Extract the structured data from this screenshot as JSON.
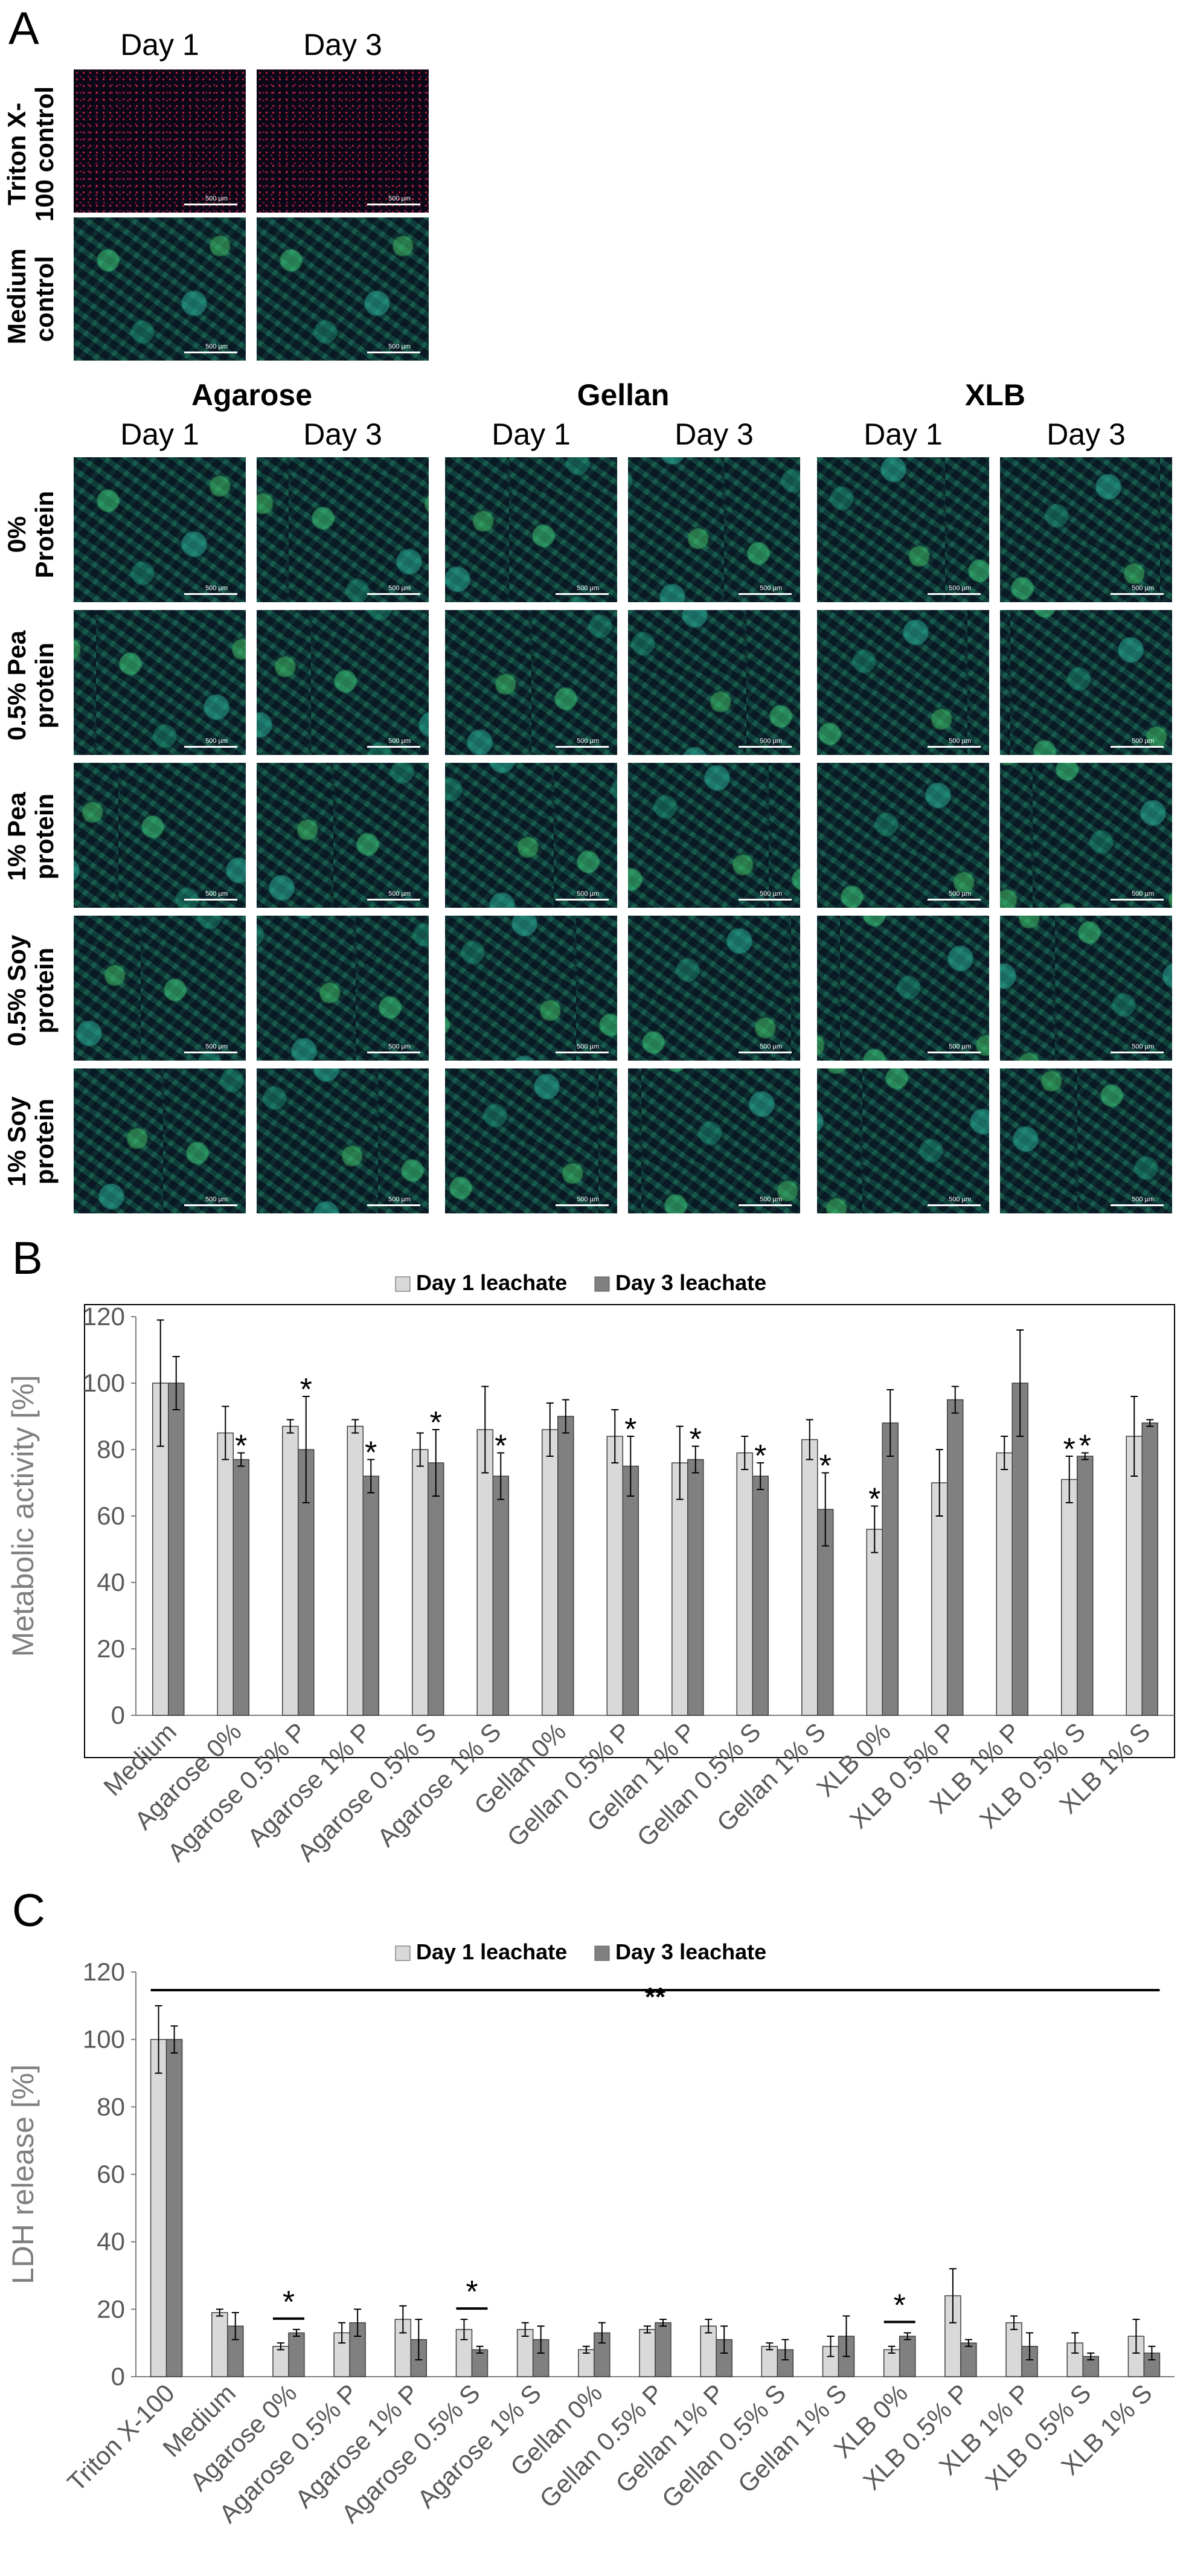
{
  "panel_letters": [
    "A",
    "B",
    "C"
  ],
  "panelA": {
    "days": [
      "Day 1",
      "Day 3"
    ],
    "controls": [
      "Triton X-100 control",
      "Medium control"
    ],
    "materials": [
      "Agarose",
      "Gellan",
      "XLB"
    ],
    "rows": [
      "0% Protein",
      "0.5% Pea protein",
      "1% Pea protein",
      "0.5% Soy protein",
      "1% Soy protein"
    ],
    "scale_label": "500 µm"
  },
  "chart_data": [
    {
      "type": "bar",
      "categories": [
        "Medium",
        "Agarose 0%",
        "Agarose 0.5% P",
        "Agarose 1% P",
        "Agarose 0.5% S",
        "Agarose 1% S",
        "Gellan 0%",
        "Gellan 0.5% P",
        "Gellan 1% P",
        "Gellan 0.5% S",
        "Gellan 1% S",
        "XLB 0%",
        "XLB 0.5% P",
        "XLB 1% P",
        "XLB 0.5% S",
        "XLB 1% S"
      ],
      "series": [
        {
          "name": "Day 1 leachate",
          "color": "#d9d9d9",
          "values": [
            100,
            85,
            87,
            87,
            80,
            86,
            86,
            84,
            76,
            79,
            83,
            56,
            70,
            79,
            71,
            84
          ],
          "errors": [
            19,
            8,
            2,
            2,
            5,
            13,
            8,
            8,
            11,
            5,
            6,
            7,
            10,
            5,
            7,
            12
          ]
        },
        {
          "name": "Day 3 leachate",
          "color": "#808080",
          "values": [
            100,
            77,
            80,
            72,
            76,
            72,
            90,
            75,
            77,
            72,
            62,
            88,
            95,
            100,
            78,
            88
          ],
          "errors": [
            8,
            2,
            16,
            5,
            10,
            7,
            5,
            9,
            4,
            4,
            11,
            10,
            4,
            16,
            1,
            1
          ]
        }
      ],
      "significance": [
        {
          "category": "Agarose 0%",
          "series": "Day 3 leachate",
          "mark": "*"
        },
        {
          "category": "Agarose 0.5% P",
          "series": "Day 3 leachate",
          "mark": "*"
        },
        {
          "category": "Agarose 1% P",
          "series": "Day 3 leachate",
          "mark": "*"
        },
        {
          "category": "Agarose 0.5% S",
          "series": "Day 3 leachate",
          "mark": "*"
        },
        {
          "category": "Agarose 1% S",
          "series": "Day 3 leachate",
          "mark": "*"
        },
        {
          "category": "Gellan 0.5% P",
          "series": "Day 3 leachate",
          "mark": "*"
        },
        {
          "category": "Gellan 1% P",
          "series": "Day 3 leachate",
          "mark": "*"
        },
        {
          "category": "Gellan 0.5% S",
          "series": "Day 3 leachate",
          "mark": "*"
        },
        {
          "category": "Gellan 1% S",
          "series": "Day 3 leachate",
          "mark": "*"
        },
        {
          "category": "XLB 0%",
          "series": "Day 1 leachate",
          "mark": "*"
        },
        {
          "category": "XLB 0.5% S",
          "series": "Day 1 leachate",
          "mark": "*"
        },
        {
          "category": "XLB 0.5% S",
          "series": "Day 3 leachate",
          "mark": "*"
        }
      ],
      "ylabel": "Metabolic activity [%]",
      "ylim": [
        0,
        120
      ],
      "yticks": [
        0,
        20,
        40,
        60,
        80,
        100,
        120
      ],
      "legend": "top"
    },
    {
      "type": "bar",
      "categories": [
        "Triton X-100",
        "Medium",
        "Agarose 0%",
        "Agarose 0.5% P",
        "Agarose 1% P",
        "Agarose 0.5% S",
        "Agarose 1% S",
        "Gellan 0%",
        "Gellan 0.5% P",
        "Gellan 1% P",
        "Gellan 0.5% S",
        "Gellan 1% S",
        "XLB 0%",
        "XLB 0.5% P",
        "XLB 1% P",
        "XLB 0.5% S",
        "XLB 1% S"
      ],
      "series": [
        {
          "name": "Day 1 leachate",
          "color": "#d9d9d9",
          "values": [
            100,
            19,
            9,
            13,
            17,
            14,
            14,
            8,
            14,
            15,
            9,
            9,
            8,
            24,
            16,
            10,
            12
          ],
          "errors": [
            10,
            1,
            1,
            3,
            4,
            3,
            2,
            1,
            1,
            2,
            1,
            3,
            1,
            8,
            2,
            3,
            5
          ]
        },
        {
          "name": "Day 3 leachate",
          "color": "#808080",
          "values": [
            100,
            15,
            13,
            16,
            11,
            8,
            11,
            13,
            16,
            11,
            8,
            12,
            12,
            10,
            9,
            6,
            7
          ],
          "errors": [
            4,
            4,
            1,
            4,
            6,
            1,
            4,
            3,
            1,
            4,
            3,
            6,
            1,
            1,
            4,
            1,
            2
          ]
        }
      ],
      "significance": [
        {
          "category": "Agarose 0%",
          "mark": "*"
        },
        {
          "category": "Agarose 0.5% S",
          "mark": "*"
        },
        {
          "category": "XLB 0%",
          "mark": "*"
        },
        {
          "category": "Triton X-100",
          "to": "XLB 1% S",
          "mark": "**"
        }
      ],
      "ylabel": "LDH release [%]",
      "ylim": [
        0,
        120
      ],
      "yticks": [
        0,
        20,
        40,
        60,
        80,
        100,
        120
      ],
      "legend": "top"
    }
  ]
}
